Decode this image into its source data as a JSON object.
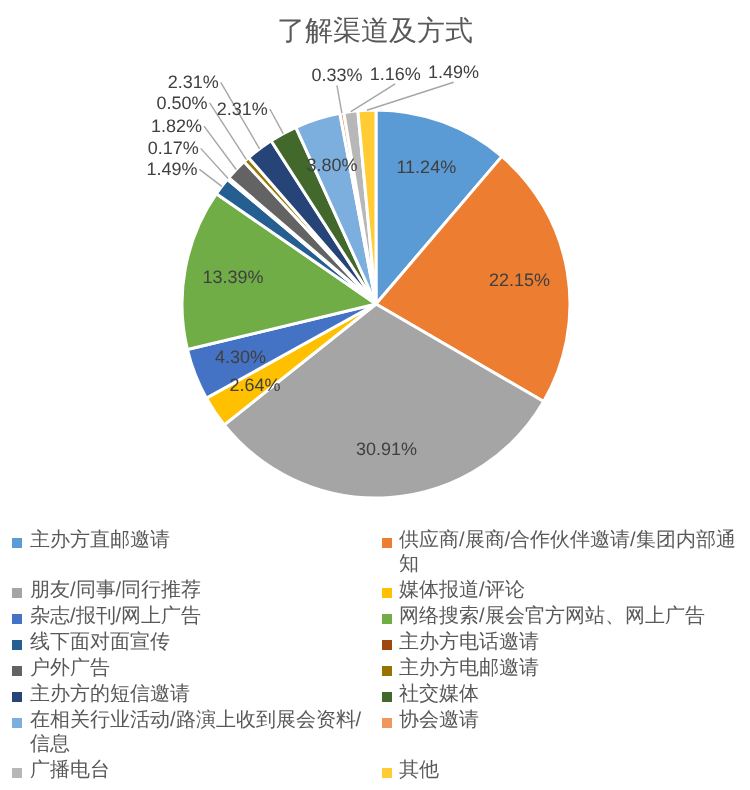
{
  "chart_data": {
    "type": "pie",
    "title": "了解渠道及方式",
    "categories": [
      "主办方直邮邀请",
      "供应商/展商/合作伙伴邀请/集团内部通知",
      "朋友/同事/同行推荐",
      "媒体报道/评论",
      "杂志/报刊/网上广告",
      "网络搜索/展会官方网站、网上广告",
      "线下面对面宣传",
      "主办方电话邀请",
      "户外广告",
      "主办方电邮邀请",
      "主办方的短信邀请",
      "社交媒体",
      "在相关行业活动/路演上收到展会资料/信息",
      "协会邀请",
      "广播电台",
      "其他"
    ],
    "values": [
      11.24,
      22.15,
      30.91,
      2.64,
      4.3,
      13.39,
      1.49,
      0.17,
      1.82,
      0.5,
      2.31,
      2.31,
      3.8,
      0.33,
      1.16,
      1.49
    ],
    "value_labels": [
      "11.24%",
      "22.15%",
      "30.91%",
      "2.64%",
      "4.30%",
      "13.39%",
      "1.49%",
      "0.17%",
      "1.82%",
      "0.50%",
      "2.31%",
      "2.31%",
      "3.80%",
      "0.33%",
      "1.16%",
      "1.49%"
    ],
    "colors": [
      "#5b9bd5",
      "#ed7d31",
      "#a5a5a5",
      "#ffc000",
      "#4472c4",
      "#70ad47",
      "#255e91",
      "#9e480e",
      "#636363",
      "#997300",
      "#264478",
      "#43682b",
      "#7cafdd",
      "#f1975a",
      "#b7b7b7",
      "#ffcd33"
    ],
    "legend": "bottom"
  }
}
